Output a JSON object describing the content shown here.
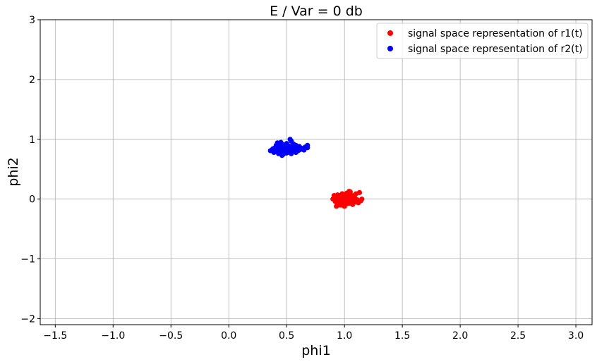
{
  "chart_data": {
    "type": "scatter",
    "title": "E / Var = 0 db",
    "xlabel": "phi1",
    "ylabel": "phi2",
    "xlim": [
      -1.63,
      3.14
    ],
    "ylim": [
      -2.1,
      3.0
    ],
    "xticks": [
      -1.5,
      -1.0,
      -0.5,
      0.0,
      0.5,
      1.0,
      1.5,
      2.0,
      2.5,
      3.0
    ],
    "xtick_labels": [
      "−1.5",
      "−1.0",
      "−0.5",
      "0.0",
      "0.5",
      "1.0",
      "1.5",
      "2.0",
      "2.5",
      "3.0"
    ],
    "yticks": [
      -2,
      -1,
      0,
      1,
      2,
      3
    ],
    "ytick_labels": [
      "−2",
      "−1",
      "0",
      "1",
      "2",
      "3"
    ],
    "grid": true,
    "legend_position": "top-right",
    "series": [
      {
        "name": "signal space representation of r1(t)",
        "color": "#ff0000",
        "points": [
          [
            0.9,
            0.0
          ],
          [
            0.91,
            0.06
          ],
          [
            0.92,
            -0.04
          ],
          [
            0.93,
            0.03
          ],
          [
            0.94,
            0.07
          ],
          [
            0.94,
            -0.08
          ],
          [
            0.95,
            -0.03
          ],
          [
            0.95,
            0.02
          ],
          [
            0.96,
            0.06
          ],
          [
            0.96,
            -0.1
          ],
          [
            0.97,
            0.0
          ],
          [
            0.97,
            -0.06
          ],
          [
            0.98,
            0.04
          ],
          [
            0.98,
            0.09
          ],
          [
            0.99,
            -0.02
          ],
          [
            0.99,
            -0.11
          ],
          [
            1.0,
            0.03
          ],
          [
            1.0,
            0.07
          ],
          [
            1.01,
            -0.05
          ],
          [
            1.01,
            0.0
          ],
          [
            1.02,
            0.1
          ],
          [
            1.02,
            -0.08
          ],
          [
            1.03,
            0.05
          ],
          [
            1.03,
            -0.02
          ],
          [
            1.04,
            0.01
          ],
          [
            1.04,
            -0.07
          ],
          [
            1.05,
            0.08
          ],
          [
            1.05,
            0.12
          ],
          [
            1.06,
            -0.04
          ],
          [
            1.06,
            0.04
          ],
          [
            1.07,
            0.0
          ],
          [
            1.07,
            -0.09
          ],
          [
            1.08,
            0.06
          ],
          [
            1.08,
            -0.02
          ],
          [
            1.09,
            0.02
          ],
          [
            1.1,
            -0.05
          ],
          [
            1.1,
            0.09
          ],
          [
            1.11,
            -0.01
          ],
          [
            1.12,
            -0.06
          ],
          [
            1.13,
            0.11
          ],
          [
            1.14,
            -0.03
          ],
          [
            1.15,
            0.0
          ],
          [
            0.93,
            -0.12
          ],
          [
            1.0,
            -0.12
          ],
          [
            1.04,
            0.13
          ]
        ]
      },
      {
        "name": "signal space representation of r2(t)",
        "color": "#0000ff",
        "points": [
          [
            0.36,
            0.81
          ],
          [
            0.38,
            0.84
          ],
          [
            0.39,
            0.78
          ],
          [
            0.4,
            0.86
          ],
          [
            0.41,
            0.9
          ],
          [
            0.41,
            0.8
          ],
          [
            0.42,
            0.94
          ],
          [
            0.43,
            0.76
          ],
          [
            0.43,
            0.84
          ],
          [
            0.44,
            0.88
          ],
          [
            0.45,
            0.79
          ],
          [
            0.45,
            0.95
          ],
          [
            0.46,
            0.83
          ],
          [
            0.47,
            0.91
          ],
          [
            0.47,
            0.75
          ],
          [
            0.48,
            0.87
          ],
          [
            0.49,
            0.81
          ],
          [
            0.5,
            0.93
          ],
          [
            0.5,
            0.77
          ],
          [
            0.51,
            0.85
          ],
          [
            0.52,
            0.89
          ],
          [
            0.52,
            0.79
          ],
          [
            0.53,
            0.83
          ],
          [
            0.54,
            0.97
          ],
          [
            0.54,
            0.76
          ],
          [
            0.55,
            0.87
          ],
          [
            0.56,
            0.81
          ],
          [
            0.56,
            0.92
          ],
          [
            0.57,
            0.84
          ],
          [
            0.58,
            0.78
          ],
          [
            0.58,
            0.9
          ],
          [
            0.59,
            0.86
          ],
          [
            0.6,
            0.81
          ],
          [
            0.61,
            0.88
          ],
          [
            0.62,
            0.83
          ],
          [
            0.63,
            0.85
          ],
          [
            0.65,
            0.82
          ],
          [
            0.66,
            0.87
          ],
          [
            0.68,
            0.86
          ],
          [
            0.68,
            0.9
          ],
          [
            0.53,
            1.0
          ],
          [
            0.46,
            0.73
          ]
        ]
      }
    ]
  }
}
